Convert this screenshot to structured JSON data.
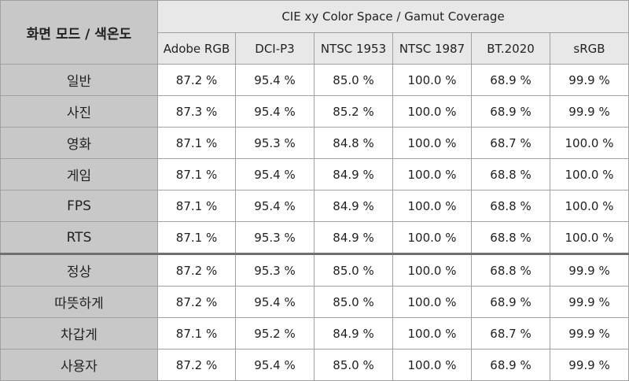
{
  "table": {
    "corner_label": "화면 모드 / 색온도",
    "group_header": "CIE xy Color Space / Gamut Coverage",
    "columns": [
      "Adobe RGB",
      "DCI-P3",
      "NTSC 1953",
      "NTSC 1987",
      "BT.2020",
      "sRGB"
    ],
    "rows": [
      {
        "label": "일반",
        "values": [
          "87.2 %",
          "95.4 %",
          "85.0 %",
          "100.0 %",
          "68.9 %",
          "99.9 %"
        ]
      },
      {
        "label": "사진",
        "values": [
          "87.3 %",
          "95.4 %",
          "85.2 %",
          "100.0 %",
          "68.9 %",
          "99.9 %"
        ]
      },
      {
        "label": "영화",
        "values": [
          "87.1 %",
          "95.3 %",
          "84.8 %",
          "100.0 %",
          "68.7 %",
          "100.0 %"
        ]
      },
      {
        "label": "게임",
        "values": [
          "87.1 %",
          "95.4 %",
          "84.9 %",
          "100.0 %",
          "68.8 %",
          "100.0 %"
        ]
      },
      {
        "label": "FPS",
        "values": [
          "87.1 %",
          "95.4 %",
          "84.9 %",
          "100.0 %",
          "68.8 %",
          "100.0 %"
        ]
      },
      {
        "label": "RTS",
        "values": [
          "87.1 %",
          "95.3 %",
          "84.9 %",
          "100.0 %",
          "68.8 %",
          "100.0 %"
        ]
      },
      {
        "label": "정상",
        "values": [
          "87.2 %",
          "95.3 %",
          "85.0 %",
          "100.0 %",
          "68.8 %",
          "99.9 %"
        ]
      },
      {
        "label": "따뜻하게",
        "values": [
          "87.2 %",
          "95.4 %",
          "85.0 %",
          "100.0 %",
          "68.9 %",
          "99.9 %"
        ]
      },
      {
        "label": "차갑게",
        "values": [
          "87.1 %",
          "95.2 %",
          "84.9 %",
          "100.0 %",
          "68.7 %",
          "99.9 %"
        ]
      },
      {
        "label": "사용자",
        "values": [
          "87.2 %",
          "95.4 %",
          "85.0 %",
          "100.0 %",
          "68.9 %",
          "99.9 %"
        ]
      }
    ]
  }
}
